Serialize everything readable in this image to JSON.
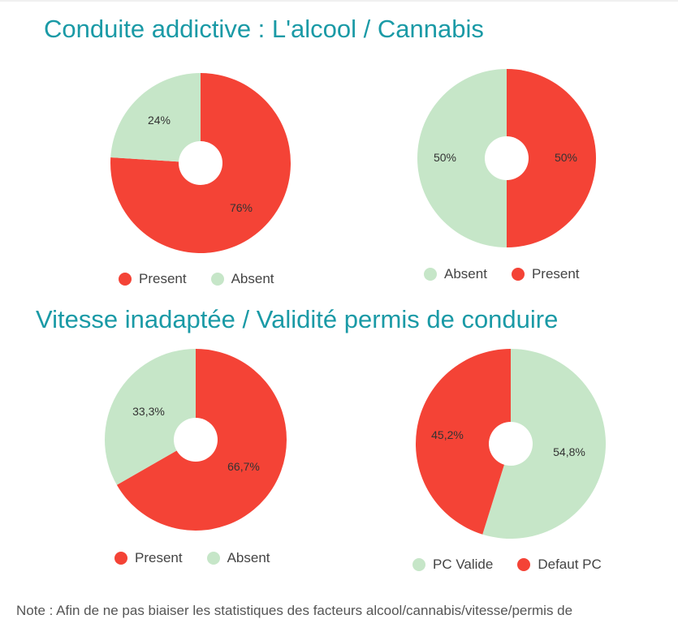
{
  "titles": {
    "section1": "Conduite addictive : L'alcool / Cannabis",
    "section2": "Vitesse inadaptée / Validité permis de conduire"
  },
  "colors": {
    "present": "#f44336",
    "absent": "#c6e6c8",
    "title": "#1a9aa6"
  },
  "chart_data": [
    {
      "type": "pie",
      "legend": [
        "Present",
        "Absent"
      ],
      "slices": [
        {
          "label": "Present",
          "value": 76,
          "display": "76%",
          "color": "#f44336"
        },
        {
          "label": "Absent",
          "value": 24,
          "display": "24%",
          "color": "#c6e6c8"
        }
      ]
    },
    {
      "type": "pie",
      "legend": [
        "Absent",
        "Present"
      ],
      "slices": [
        {
          "label": "Absent",
          "value": 50,
          "display": "50%",
          "color": "#c6e6c8"
        },
        {
          "label": "Present",
          "value": 50,
          "display": "50%",
          "color": "#f44336"
        }
      ]
    },
    {
      "type": "pie",
      "legend": [
        "Present",
        "Absent"
      ],
      "slices": [
        {
          "label": "Present",
          "value": 66.7,
          "display": "66,7%",
          "color": "#f44336"
        },
        {
          "label": "Absent",
          "value": 33.3,
          "display": "33,3%",
          "color": "#c6e6c8"
        }
      ]
    },
    {
      "type": "pie",
      "legend": [
        "PC Valide",
        "Defaut PC"
      ],
      "slices": [
        {
          "label": "PC Valide",
          "value": 54.8,
          "display": "54,8%",
          "color": "#c6e6c8"
        },
        {
          "label": "Defaut PC",
          "value": 45.2,
          "display": "45,2%",
          "color": "#f44336"
        }
      ]
    }
  ],
  "footnote": "Note : Afin de ne pas biaiser les statistiques des facteurs alcool/cannabis/vitesse/permis de"
}
